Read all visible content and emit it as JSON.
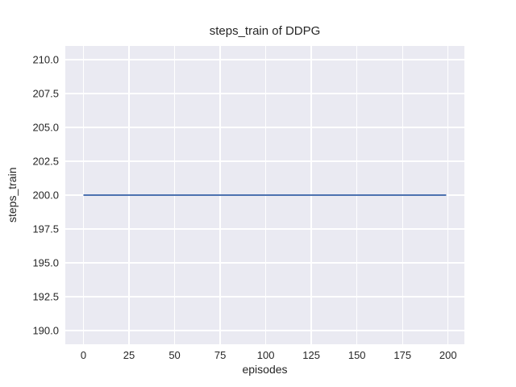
{
  "figure": {
    "background": "#ffffff"
  },
  "chart_data": {
    "type": "line",
    "title": "steps_train of DDPG",
    "xlabel": "episodes",
    "ylabel": "steps_train",
    "series": [
      {
        "name": "steps_train",
        "color": "#4C72B0",
        "line_width": 2,
        "x": [
          0,
          199
        ],
        "y": [
          200,
          200
        ],
        "description": "constant value 200 for every episode from 0 to 199"
      }
    ],
    "xlim": [
      -9.95,
      208.95
    ],
    "ylim": [
      189,
      211
    ],
    "xticks": [
      0,
      25,
      50,
      75,
      100,
      125,
      150,
      175,
      200
    ],
    "xtick_labels": [
      "0",
      "25",
      "50",
      "75",
      "100",
      "125",
      "150",
      "175",
      "200"
    ],
    "yticks": [
      190.0,
      192.5,
      195.0,
      197.5,
      200.0,
      202.5,
      205.0,
      207.5,
      210.0
    ],
    "ytick_labels": [
      "190.0",
      "192.5",
      "195.0",
      "197.5",
      "200.0",
      "202.5",
      "205.0",
      "207.5",
      "210.0"
    ],
    "grid": true,
    "legend_position": "none",
    "plot_bg": "#EAEAF2",
    "grid_color": "#FFFFFF",
    "text_color": "#262626"
  }
}
